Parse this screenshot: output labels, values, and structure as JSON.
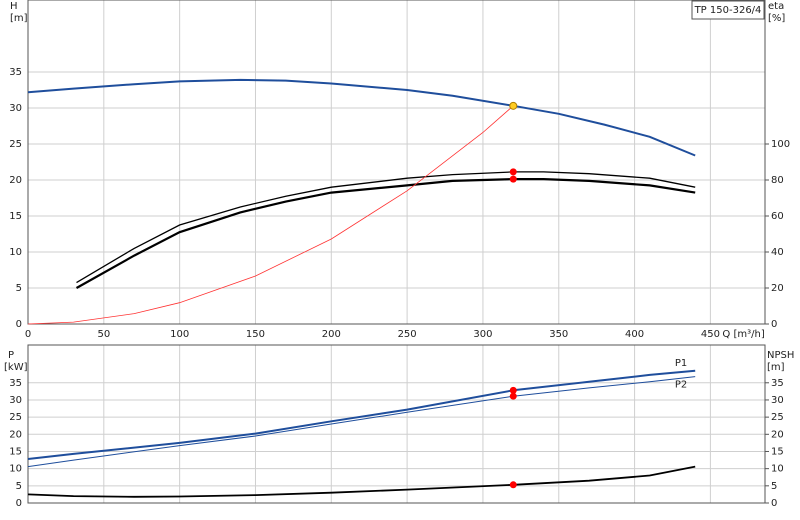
{
  "chart_data": [
    {
      "type": "line",
      "title": "TP 150-326/4",
      "ylabel": "H",
      "yunit": "[m]",
      "y2label": "eta",
      "y2unit": "[%]",
      "xlabel": "Q [m³/h]",
      "xlim": [
        0,
        486
      ],
      "xticks": [
        0,
        50,
        100,
        150,
        200,
        250,
        300,
        350,
        400,
        450
      ],
      "show_xtick_labels": true,
      "ylim": [
        0,
        45
      ],
      "yticks": [
        0,
        5,
        10,
        15,
        20,
        25,
        30,
        35
      ],
      "y2lim": [
        0,
        180
      ],
      "y2ticks": [
        0,
        20,
        40,
        60,
        80,
        100
      ],
      "grid": true,
      "series": [
        {
          "color": "#1f4e9c",
          "width": 2,
          "x": [
            0,
            30,
            70,
            100,
            140,
            170,
            200,
            250,
            280,
            320,
            350,
            380,
            410,
            440
          ],
          "values": [
            32.2,
            32.7,
            33.3,
            33.7,
            33.9,
            33.8,
            33.4,
            32.5,
            31.7,
            30.3,
            29.2,
            27.7,
            26.0,
            23.4
          ]
        },
        {
          "color": "#000000",
          "width": 1.3,
          "axis": "y2",
          "x": [
            32,
            70,
            100,
            140,
            170,
            200,
            250,
            280,
            320,
            340,
            370,
            410,
            440
          ],
          "values": [
            23,
            42,
            55,
            65,
            71,
            76,
            81,
            83,
            84.5,
            84.5,
            83.5,
            81,
            76
          ]
        },
        {
          "color": "#000000",
          "width": 2.2,
          "axis": "y2",
          "x": [
            32,
            70,
            100,
            140,
            170,
            200,
            250,
            280,
            320,
            340,
            370,
            410,
            440
          ],
          "values": [
            20,
            38,
            51,
            62,
            68,
            73,
            77,
            79.5,
            80.5,
            80.5,
            79.5,
            77,
            73
          ]
        },
        {
          "color": "#ff3333",
          "width": 0.8,
          "x": [
            0,
            30,
            70,
            100,
            150,
            200,
            250,
            300,
            320
          ],
          "values": [
            0,
            0.27,
            1.45,
            2.96,
            6.66,
            11.8,
            18.5,
            26.6,
            30.3
          ]
        },
        {
          "color": "#ffcc22",
          "style": "marker",
          "x": [
            320
          ],
          "values": [
            30.3
          ]
        },
        {
          "color": "#ff0000",
          "style": "marker",
          "axis": "y2",
          "x": [
            320,
            320
          ],
          "values": [
            80.5,
            84.5
          ]
        }
      ]
    },
    {
      "type": "line",
      "ylabel": "P",
      "yunit": "[kW]",
      "y2label": "NPSH",
      "y2unit": "[m]",
      "xlim": [
        0,
        486
      ],
      "xticks": [
        0,
        50,
        100,
        150,
        200,
        250,
        300,
        350,
        400,
        450
      ],
      "show_xtick_labels": false,
      "ylim": [
        0,
        46
      ],
      "yticks": [
        0,
        5,
        10,
        15,
        20,
        25,
        30,
        35
      ],
      "y2lim": [
        0,
        46
      ],
      "y2ticks": [
        0,
        5,
        10,
        15,
        20,
        25,
        30,
        35
      ],
      "grid": true,
      "series": [
        {
          "name": "P1",
          "color": "#1f4e9c",
          "width": 2,
          "x": [
            0,
            30,
            100,
            150,
            200,
            250,
            320,
            370,
            410,
            440
          ],
          "values": [
            12.8,
            14.3,
            17.5,
            20.2,
            23.8,
            27.2,
            32.8,
            35.3,
            37.3,
            38.5
          ]
        },
        {
          "name": "P2",
          "color": "#1f4e9c",
          "width": 1,
          "x": [
            0,
            30,
            100,
            150,
            200,
            250,
            320,
            370,
            410,
            440
          ],
          "values": [
            10.6,
            12.5,
            16.7,
            19.5,
            23.0,
            26.4,
            31.1,
            33.5,
            35.3,
            36.8
          ]
        },
        {
          "color": "#000000",
          "width": 1.8,
          "axis": "y2",
          "x": [
            0,
            30,
            70,
            100,
            150,
            200,
            250,
            320,
            370,
            410,
            440
          ],
          "values": [
            2.5,
            2.0,
            1.8,
            1.9,
            2.3,
            3.0,
            3.9,
            5.3,
            6.5,
            8.0,
            10.6
          ]
        },
        {
          "color": "#ff0000",
          "style": "marker",
          "x": [
            320,
            320
          ],
          "values": [
            32.8,
            31.1
          ]
        },
        {
          "color": "#ff0000",
          "style": "marker",
          "axis": "y2",
          "x": [
            320
          ],
          "values": [
            5.3
          ]
        }
      ]
    }
  ]
}
